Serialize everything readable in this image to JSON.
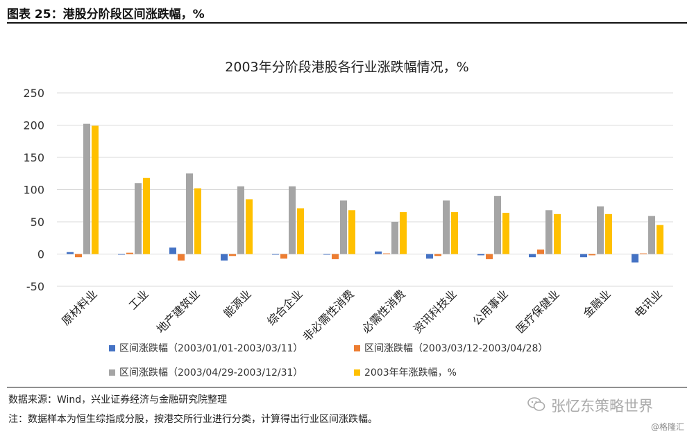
{
  "header": {
    "title": "图表 25：港股分阶段区间涨跌幅，%"
  },
  "chart_data": {
    "type": "bar",
    "title": "2003年分阶段港股各行业涨跌幅情况，%",
    "categories": [
      "原材料业",
      "工业",
      "地产建筑业",
      "能源业",
      "综合企业",
      "非必需性消费",
      "必需性消费",
      "资讯科技业",
      "公用事业",
      "医疗保健业",
      "金融业",
      "电讯业"
    ],
    "series": [
      {
        "name": "区间涨跌幅（2003/01/01-2003/03/11）",
        "color": "#4472C4",
        "values": [
          3,
          -1,
          10,
          -10,
          -1,
          -1,
          4,
          -7,
          -2,
          -5,
          -5,
          -13
        ]
      },
      {
        "name": "区间涨跌幅（2003/03/12-2003/04/28）",
        "color": "#ED7D31",
        "values": [
          -5,
          2,
          -10,
          -3,
          -7,
          -8,
          1,
          -3,
          -8,
          7,
          -2,
          1
        ]
      },
      {
        "name": "区间涨跌幅（2003/04/29-2003/12/31）",
        "color": "#A5A5A5",
        "values": [
          202,
          110,
          125,
          105,
          105,
          83,
          50,
          83,
          90,
          68,
          74,
          59
        ]
      },
      {
        "name": "2003年年涨跌幅，%",
        "color": "#FFC000",
        "values": [
          199,
          118,
          102,
          85,
          71,
          68,
          65,
          65,
          64,
          62,
          62,
          45
        ]
      }
    ],
    "yticks": [
      -50,
      0,
      50,
      100,
      150,
      200,
      250
    ],
    "ylim": [
      -50,
      250
    ],
    "grid": true,
    "legend_position": "bottom"
  },
  "source": "数据来源：Wind，兴业证券经济与金融研究院整理",
  "note": "注：数据样本为恒生综指成分股，按港交所行业进行分类，计算得出行业区间涨跌幅。",
  "watermark": {
    "icon": "wechat-icon",
    "text": "张忆东策略世界"
  },
  "credit": "@格隆汇"
}
